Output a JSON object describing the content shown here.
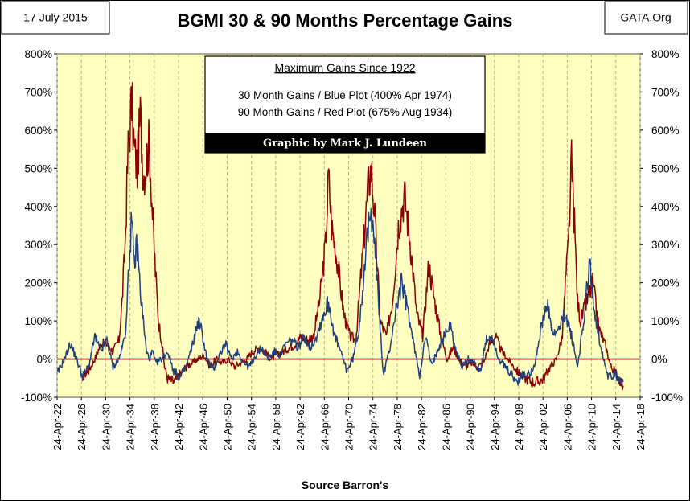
{
  "header": {
    "date": "17 July 2015",
    "title": "BGMI 30 & 90 Months Percentage Gains",
    "source": "GATA.Org"
  },
  "infobox": {
    "heading": "Maximum Gains Since 1922",
    "line1": "30 Month Gains / Blue Plot (400% Apr 1974)",
    "line2": "90 Month Gains / Red Plot (675% Aug 1934)",
    "credit": "Graphic by Mark J. Lundeen"
  },
  "colors": {
    "plot_bg": "#FFFFC0",
    "blue_series": "#1F3F7F",
    "red_series": "#8B0000",
    "zero_line": "#7A0000",
    "grid": "#B5B58A"
  },
  "chart_data": {
    "type": "line",
    "xlabel": "Source Barron's",
    "ylim": [
      -100,
      800
    ],
    "xlim": [
      1922.3,
      2018.3
    ],
    "y_ticks": [
      -100,
      0,
      100,
      200,
      300,
      400,
      500,
      600,
      700,
      800
    ],
    "y_tick_labels": [
      "-100%",
      "0%",
      "100%",
      "200%",
      "300%",
      "400%",
      "500%",
      "600%",
      "700%",
      "800%"
    ],
    "x_tick_labels": [
      "24-Apr-22",
      "24-Apr-26",
      "24-Apr-30",
      "24-Apr-34",
      "24-Apr-38",
      "24-Apr-42",
      "24-Apr-46",
      "24-Apr-50",
      "24-Apr-54",
      "24-Apr-58",
      "24-Apr-62",
      "24-Apr-66",
      "24-Apr-70",
      "24-Apr-74",
      "24-Apr-78",
      "24-Apr-82",
      "24-Apr-86",
      "24-Apr-90",
      "24-Apr-94",
      "24-Apr-98",
      "24-Apr-02",
      "24-Apr-06",
      "24-Apr-10",
      "24-Apr-14",
      "24-Apr-18"
    ],
    "grid": "vertical dashed",
    "series": [
      {
        "name": "30 Month Gains",
        "color": "#1F3F7F",
        "points": [
          [
            1922.3,
            -40
          ],
          [
            1923.5,
            0
          ],
          [
            1924.5,
            40
          ],
          [
            1925.5,
            0
          ],
          [
            1926.5,
            -45
          ],
          [
            1927.5,
            -20
          ],
          [
            1928.5,
            60
          ],
          [
            1929.5,
            20
          ],
          [
            1930.5,
            50
          ],
          [
            1931.5,
            -20
          ],
          [
            1932.5,
            0
          ],
          [
            1933.5,
            60
          ],
          [
            1934.0,
            200
          ],
          [
            1934.5,
            360
          ],
          [
            1935.0,
            250
          ],
          [
            1935.5,
            300
          ],
          [
            1936.0,
            180
          ],
          [
            1936.5,
            100
          ],
          [
            1937.0,
            20
          ],
          [
            1937.5,
            0
          ],
          [
            1938.0,
            20
          ],
          [
            1938.5,
            -10
          ],
          [
            1939.5,
            0
          ],
          [
            1940.5,
            20
          ],
          [
            1941.5,
            -30
          ],
          [
            1942.5,
            -50
          ],
          [
            1943.5,
            -20
          ],
          [
            1944.5,
            30
          ],
          [
            1945.5,
            100
          ],
          [
            1946.0,
            80
          ],
          [
            1947.0,
            0
          ],
          [
            1948.0,
            -30
          ],
          [
            1949.0,
            10
          ],
          [
            1950.0,
            40
          ],
          [
            1951.0,
            0
          ],
          [
            1952.0,
            20
          ],
          [
            1953.0,
            -10
          ],
          [
            1954.0,
            -20
          ],
          [
            1955.0,
            10
          ],
          [
            1956.0,
            30
          ],
          [
            1957.0,
            0
          ],
          [
            1958.0,
            20
          ],
          [
            1959.0,
            10
          ],
          [
            1960.0,
            40
          ],
          [
            1961.0,
            50
          ],
          [
            1962.0,
            30
          ],
          [
            1963.0,
            60
          ],
          [
            1964.0,
            30
          ],
          [
            1965.0,
            60
          ],
          [
            1966.0,
            110
          ],
          [
            1967.0,
            150
          ],
          [
            1968.0,
            60
          ],
          [
            1969.0,
            20
          ],
          [
            1970.0,
            -30
          ],
          [
            1971.0,
            0
          ],
          [
            1972.0,
            80
          ],
          [
            1973.0,
            260
          ],
          [
            1973.5,
            330
          ],
          [
            1974.3,
            400
          ],
          [
            1975.0,
            200
          ],
          [
            1976.0,
            -40
          ],
          [
            1977.0,
            20
          ],
          [
            1978.0,
            120
          ],
          [
            1979.0,
            200
          ],
          [
            1980.0,
            130
          ],
          [
            1981.0,
            40
          ],
          [
            1982.0,
            -40
          ],
          [
            1983.0,
            60
          ],
          [
            1984.0,
            -20
          ],
          [
            1985.0,
            30
          ],
          [
            1986.0,
            60
          ],
          [
            1987.0,
            90
          ],
          [
            1988.0,
            20
          ],
          [
            1989.0,
            -20
          ],
          [
            1990.0,
            0
          ],
          [
            1991.0,
            -10
          ],
          [
            1992.0,
            -30
          ],
          [
            1993.0,
            50
          ],
          [
            1994.0,
            60
          ],
          [
            1995.0,
            0
          ],
          [
            1996.0,
            -20
          ],
          [
            1997.0,
            -40
          ],
          [
            1998.0,
            -60
          ],
          [
            1999.0,
            -40
          ],
          [
            2000.0,
            -40
          ],
          [
            2001.0,
            -10
          ],
          [
            2002.0,
            80
          ],
          [
            2003.0,
            140
          ],
          [
            2004.0,
            60
          ],
          [
            2005.0,
            80
          ],
          [
            2006.0,
            120
          ],
          [
            2007.0,
            60
          ],
          [
            2008.0,
            -20
          ],
          [
            2009.0,
            100
          ],
          [
            2010.0,
            250
          ],
          [
            2011.0,
            100
          ],
          [
            2012.0,
            20
          ],
          [
            2013.0,
            -40
          ],
          [
            2014.0,
            -40
          ],
          [
            2015.5,
            -60
          ]
        ]
      },
      {
        "name": "90 Month Gains",
        "color": "#8B0000",
        "points": [
          [
            1926.5,
            -45
          ],
          [
            1927.5,
            -30
          ],
          [
            1928.5,
            0
          ],
          [
            1929.5,
            40
          ],
          [
            1930.5,
            40
          ],
          [
            1931.5,
            20
          ],
          [
            1932.5,
            50
          ],
          [
            1933.0,
            150
          ],
          [
            1933.5,
            300
          ],
          [
            1934.0,
            550
          ],
          [
            1934.6,
            675
          ],
          [
            1935.0,
            550
          ],
          [
            1935.5,
            500
          ],
          [
            1936.0,
            640
          ],
          [
            1936.5,
            480
          ],
          [
            1937.0,
            520
          ],
          [
            1937.5,
            570
          ],
          [
            1938.0,
            380
          ],
          [
            1938.5,
            230
          ],
          [
            1939.0,
            100
          ],
          [
            1939.5,
            50
          ],
          [
            1940.0,
            -20
          ],
          [
            1940.5,
            -50
          ],
          [
            1941.5,
            -60
          ],
          [
            1942.5,
            -40
          ],
          [
            1943.5,
            -20
          ],
          [
            1944.5,
            -10
          ],
          [
            1945.5,
            0
          ],
          [
            1946.5,
            10
          ],
          [
            1947.5,
            -20
          ],
          [
            1948.5,
            0
          ],
          [
            1949.5,
            -10
          ],
          [
            1950.5,
            0
          ],
          [
            1951.5,
            -20
          ],
          [
            1952.5,
            -10
          ],
          [
            1953.5,
            0
          ],
          [
            1954.5,
            20
          ],
          [
            1955.5,
            30
          ],
          [
            1956.5,
            20
          ],
          [
            1957.5,
            0
          ],
          [
            1958.5,
            10
          ],
          [
            1959.5,
            20
          ],
          [
            1960.5,
            30
          ],
          [
            1961.5,
            40
          ],
          [
            1962.5,
            60
          ],
          [
            1963.5,
            50
          ],
          [
            1964.5,
            60
          ],
          [
            1965.5,
            150
          ],
          [
            1966.5,
            300
          ],
          [
            1967.0,
            480
          ],
          [
            1967.5,
            350
          ],
          [
            1968.5,
            250
          ],
          [
            1969.5,
            120
          ],
          [
            1970.5,
            60
          ],
          [
            1971.5,
            50
          ],
          [
            1972.5,
            250
          ],
          [
            1973.5,
            450
          ],
          [
            1974.0,
            500
          ],
          [
            1974.5,
            400
          ],
          [
            1975.5,
            100
          ],
          [
            1976.5,
            60
          ],
          [
            1977.5,
            150
          ],
          [
            1978.5,
            350
          ],
          [
            1979.5,
            430
          ],
          [
            1980.5,
            300
          ],
          [
            1981.5,
            120
          ],
          [
            1982.5,
            60
          ],
          [
            1983.5,
            250
          ],
          [
            1984.5,
            150
          ],
          [
            1985.5,
            60
          ],
          [
            1986.5,
            0
          ],
          [
            1987.5,
            30
          ],
          [
            1988.5,
            0
          ],
          [
            1989.5,
            -20
          ],
          [
            1990.5,
            -10
          ],
          [
            1991.5,
            -20
          ],
          [
            1992.5,
            -10
          ],
          [
            1993.5,
            40
          ],
          [
            1994.5,
            60
          ],
          [
            1995.5,
            20
          ],
          [
            1996.5,
            0
          ],
          [
            1997.5,
            -20
          ],
          [
            1998.5,
            -40
          ],
          [
            1999.5,
            -50
          ],
          [
            2000.5,
            -60
          ],
          [
            2001.5,
            -60
          ],
          [
            2002.5,
            -50
          ],
          [
            2003.5,
            -20
          ],
          [
            2004.5,
            0
          ],
          [
            2005.5,
            60
          ],
          [
            2006.0,
            200
          ],
          [
            2006.5,
            300
          ],
          [
            2007.0,
            510
          ],
          [
            2007.5,
            350
          ],
          [
            2008.0,
            150
          ],
          [
            2008.5,
            100
          ],
          [
            2009.5,
            150
          ],
          [
            2010.5,
            200
          ],
          [
            2011.5,
            80
          ],
          [
            2012.5,
            40
          ],
          [
            2013.5,
            -20
          ],
          [
            2014.5,
            -40
          ],
          [
            2015.5,
            -70
          ]
        ]
      }
    ]
  }
}
